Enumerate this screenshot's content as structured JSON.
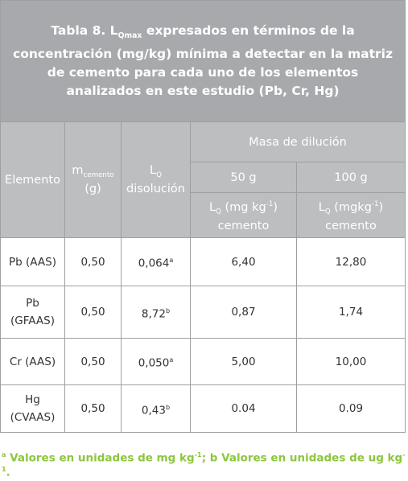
{
  "title": [
    "Tabla 8. L",
    "Qmax",
    " expresados en términos de la concentración (mg/kg) mínima a detectar en la matriz de cemento para cada uno de los elementos analizados en este estudio (Pb, Cr, Hg)"
  ],
  "header": {
    "element": "Elemento",
    "mass": [
      "m",
      "cemento",
      "(g)"
    ],
    "lq": [
      "L",
      "Q",
      "disolución"
    ],
    "dilution": "Masa de dilución",
    "col50": {
      "label": "50 g",
      "unit": [
        "L",
        "Q",
        " (mg kg",
        "-1",
        ")",
        "cemento"
      ]
    },
    "col100": {
      "label": "100 g",
      "unit": [
        "L",
        "Q",
        " (mgkg",
        "-1",
        ")",
        "cemento"
      ]
    }
  },
  "rows": [
    {
      "element": [
        "Pb (AAS)"
      ],
      "mass": "0,50",
      "lq": [
        "0,064",
        "a"
      ],
      "c50": "6,40",
      "c100": "12,80"
    },
    {
      "element": [
        "Pb",
        "(GFAAS)"
      ],
      "mass": "0,50",
      "lq": [
        "8,72",
        "b"
      ],
      "c50": "0,87",
      "c100": "1,74"
    },
    {
      "element": [
        "Cr (AAS)"
      ],
      "mass": "0,50",
      "lq": [
        "0,050",
        "a"
      ],
      "c50": "5,00",
      "c100": "10,00"
    },
    {
      "element": [
        "Hg",
        "(CVAAS)"
      ],
      "mass": "0,50",
      "lq": [
        "0,43",
        "b"
      ],
      "c50": "0.04",
      "c100": "0.09"
    }
  ],
  "footnote": [
    "a",
    " Valores en unidades de mg kg",
    "-1",
    "; b Valores en unidades de ug kg",
    "-1",
    "."
  ]
}
